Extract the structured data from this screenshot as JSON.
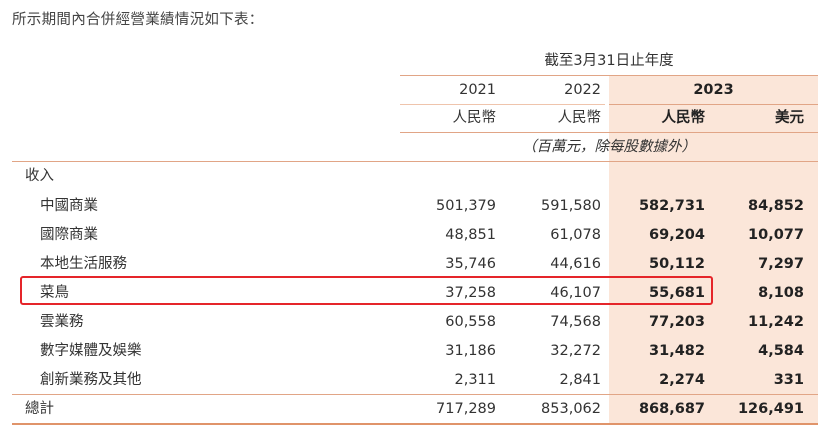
{
  "intro_text": "所示期間內合併經營業績情況如下表：",
  "header": {
    "period": "截至3月31日止年度",
    "years": [
      "2021",
      "2022",
      "2023"
    ],
    "currencies": [
      "人民幣",
      "人民幣",
      "人民幣",
      "美元"
    ],
    "unit_note": "（百萬元，除每股數據外）"
  },
  "section_label": "收入",
  "rows": [
    {
      "label": "中國商業",
      "v2021": "501,379",
      "v2022": "591,580",
      "v2023_rmb": "582,731",
      "v2023_usd": "84,852"
    },
    {
      "label": "國際商業",
      "v2021": "48,851",
      "v2022": "61,078",
      "v2023_rmb": "69,204",
      "v2023_usd": "10,077"
    },
    {
      "label": "本地生活服務",
      "v2021": "35,746",
      "v2022": "44,616",
      "v2023_rmb": "50,112",
      "v2023_usd": "7,297"
    },
    {
      "label": "菜鳥",
      "v2021": "37,258",
      "v2022": "46,107",
      "v2023_rmb": "55,681",
      "v2023_usd": "8,108"
    },
    {
      "label": "雲業務",
      "v2021": "60,558",
      "v2022": "74,568",
      "v2023_rmb": "77,203",
      "v2023_usd": "11,242"
    },
    {
      "label": "數字媒體及娛樂",
      "v2021": "31,186",
      "v2022": "32,272",
      "v2023_rmb": "31,482",
      "v2023_usd": "4,584"
    },
    {
      "label": "創新業務及其他",
      "v2021": "2,311",
      "v2022": "2,841",
      "v2023_rmb": "2,274",
      "v2023_usd": "331"
    }
  ],
  "total": {
    "label": "總計",
    "v2021": "717,289",
    "v2022": "853,062",
    "v2023_rmb": "868,687",
    "v2023_usd": "126,491"
  },
  "colors": {
    "accent_shade": "#fbe6d9",
    "rule": "#e1a586",
    "highlight_box": "#e5252a"
  }
}
